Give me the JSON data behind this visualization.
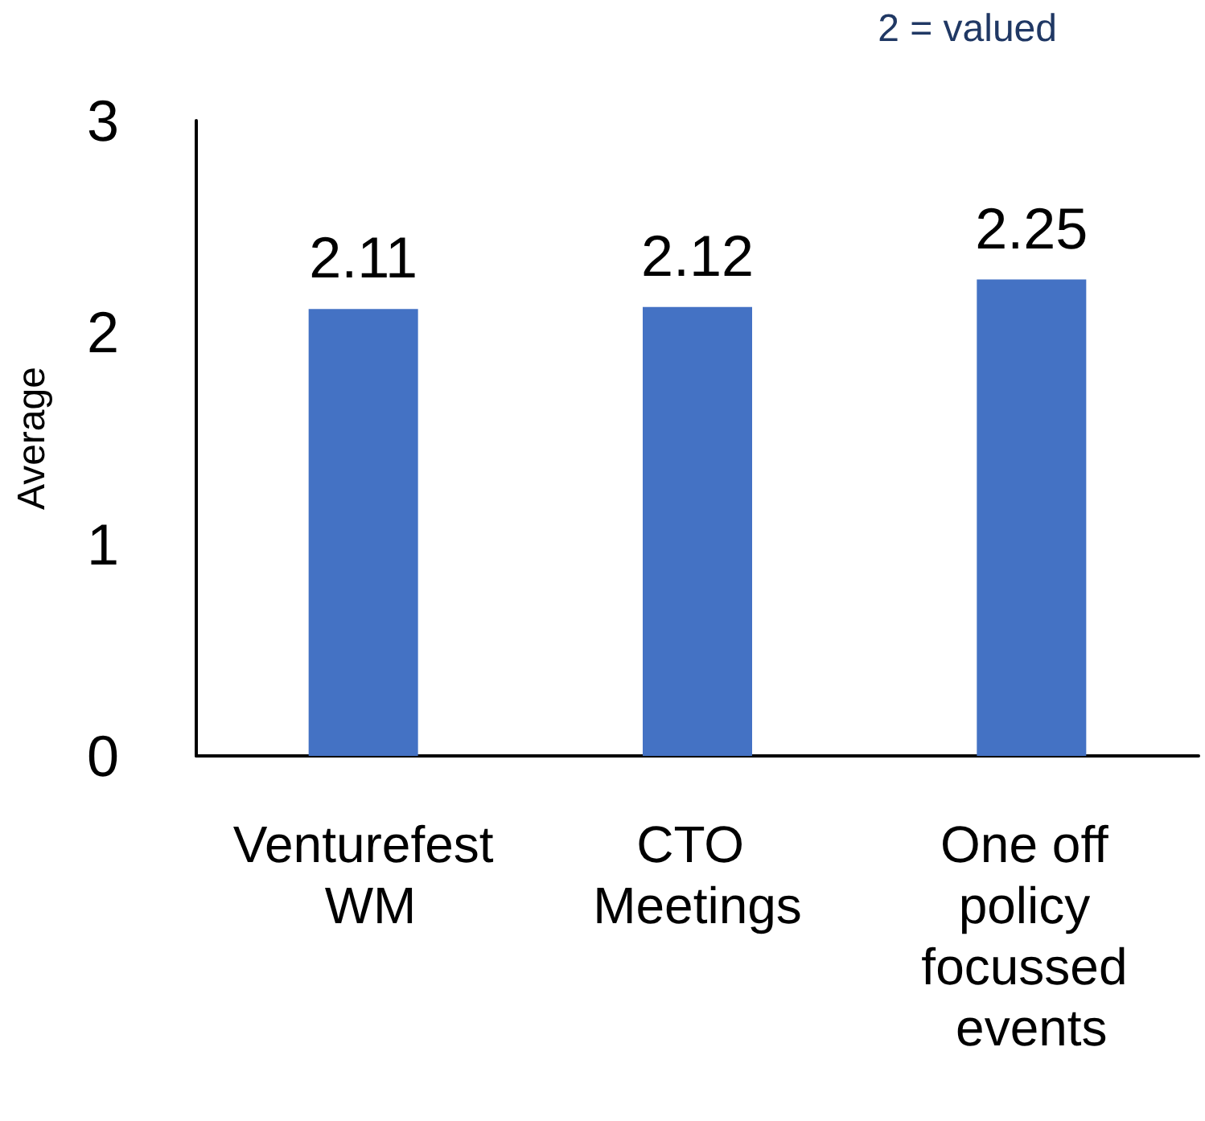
{
  "chart_data": {
    "type": "bar",
    "ylabel": "Average",
    "categories": [
      "Venturefest WM",
      "CTO Meetings",
      "One off policy focussed events"
    ],
    "values": [
      2.11,
      2.12,
      2.25
    ],
    "color": "#4472c4",
    "ylim": [
      0,
      3
    ],
    "yticks": [
      0,
      1,
      2,
      3
    ],
    "grid": false,
    "data_labels": true,
    "annotations": [
      "2 = valued"
    ]
  }
}
